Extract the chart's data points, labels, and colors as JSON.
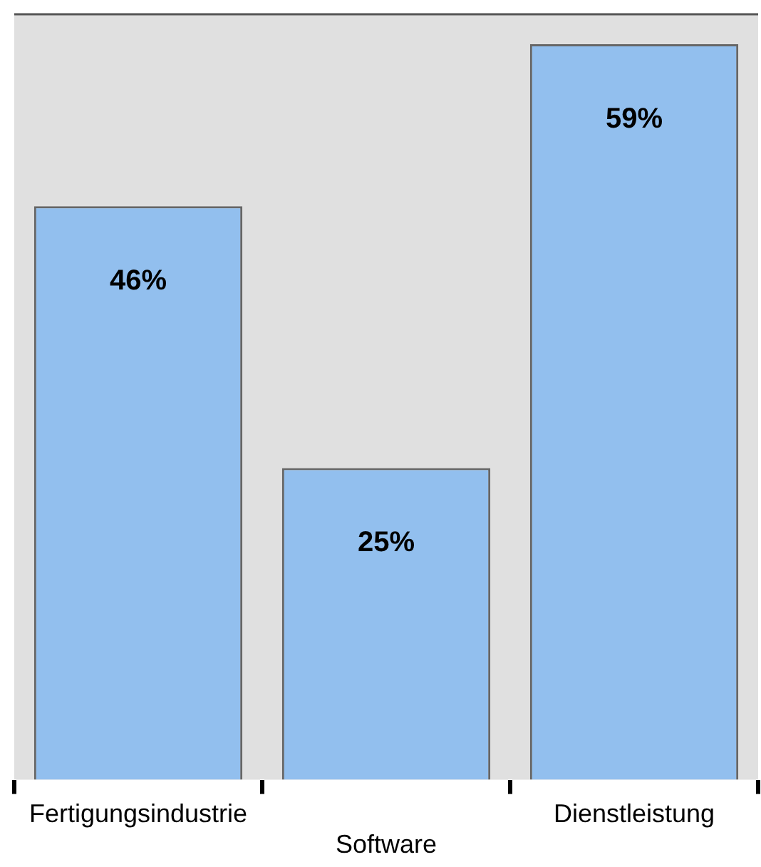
{
  "chart_data": {
    "type": "bar",
    "categories": [
      "Fertigungsindustrie",
      "Software",
      "Dienstleistung"
    ],
    "values": [
      46,
      25,
      59
    ],
    "value_labels": [
      "46%",
      "25%",
      "59%"
    ],
    "color": "#92bfee",
    "ylim": [
      0,
      61.4
    ],
    "grid": false,
    "legend": false
  }
}
